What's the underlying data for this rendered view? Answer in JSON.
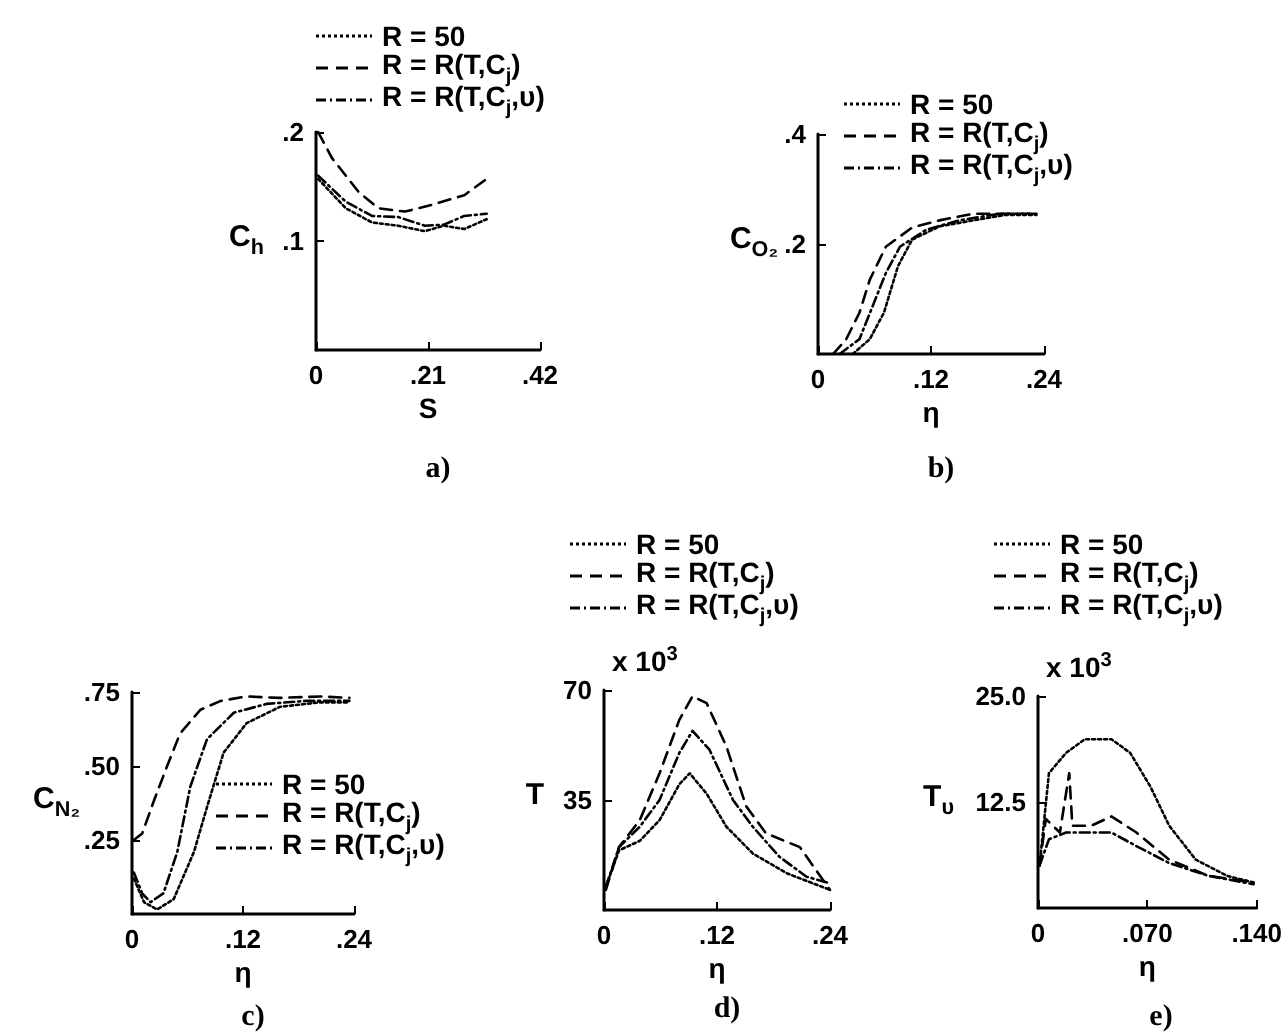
{
  "chart_data": [
    {
      "type": "line",
      "title": "a)",
      "xlabel": "S",
      "ylabel": "C$_{h}$",
      "xlim": [
        0,
        0.42
      ],
      "ylim": [
        0,
        0.2
      ],
      "xticks": [
        {
          "value": 0,
          "label": "0"
        },
        {
          "value": 0.21,
          "label": ".21"
        },
        {
          "value": 0.42,
          "label": ".42"
        }
      ],
      "yticks": [
        {
          "value": 0.1,
          "label": ".1"
        },
        {
          "value": 0.2,
          "label": ".2"
        }
      ],
      "legend": "top",
      "marker": "none",
      "grid": false,
      "series": [
        {
          "name": "R = 50",
          "color": "#000000",
          "line_style": "dotted",
          "x": [
            0.004,
            0.056,
            0.105,
            0.154,
            0.204,
            0.24,
            0.278,
            0.32
          ],
          "values": [
            0.157,
            0.13,
            0.117,
            0.114,
            0.109,
            0.114,
            0.111,
            0.12
          ]
        },
        {
          "name": "R = R(T,C$_{j}$)",
          "color": "#000000",
          "line_style": "dashed",
          "x": [
            0.004,
            0.03,
            0.08,
            0.117,
            0.167,
            0.216,
            0.278,
            0.32
          ],
          "values": [
            0.2,
            0.176,
            0.145,
            0.13,
            0.127,
            0.133,
            0.142,
            0.157
          ]
        },
        {
          "name": "R = R(T,C$_{j}$,υ)",
          "color": "#000000",
          "line_style": "dashdot",
          "x": [
            0.004,
            0.056,
            0.105,
            0.154,
            0.204,
            0.24,
            0.278,
            0.32
          ],
          "values": [
            0.16,
            0.136,
            0.123,
            0.122,
            0.114,
            0.115,
            0.123,
            0.125
          ]
        }
      ]
    },
    {
      "type": "line",
      "title": "b)",
      "xlabel": "η",
      "ylabel": "C$_{O₂}$",
      "xlim": [
        0,
        0.24
      ],
      "ylim": [
        0,
        0.4
      ],
      "xticks": [
        {
          "value": 0,
          "label": "0"
        },
        {
          "value": 0.12,
          "label": ".12"
        },
        {
          "value": 0.24,
          "label": ".24"
        }
      ],
      "yticks": [
        {
          "value": 0.2,
          "label": ".2"
        },
        {
          "value": 0.4,
          "label": ".4"
        }
      ],
      "legend": "top",
      "marker": "none",
      "grid": false,
      "series": [
        {
          "name": "R = 50",
          "color": "#000000",
          "line_style": "dotted",
          "x": [
            0.037,
            0.055,
            0.07,
            0.085,
            0.1,
            0.129,
            0.165,
            0.2,
            0.232
          ],
          "values": [
            0,
            0.027,
            0.075,
            0.16,
            0.208,
            0.232,
            0.243,
            0.253,
            0.253
          ]
        },
        {
          "name": "R = R(T,C$_{j}$)",
          "color": "#000000",
          "line_style": "dashed",
          "x": [
            0.016,
            0.03,
            0.044,
            0.055,
            0.072,
            0.1,
            0.129,
            0.165,
            0.2,
            0.232
          ],
          "values": [
            0,
            0.027,
            0.075,
            0.135,
            0.195,
            0.23,
            0.243,
            0.255,
            0.255,
            0.255
          ]
        },
        {
          "name": "R = R(T,C$_{j}$,υ)",
          "color": "#000000",
          "line_style": "dashdot",
          "x": [
            0.023,
            0.044,
            0.058,
            0.072,
            0.087,
            0.115,
            0.15,
            0.193,
            0.232
          ],
          "values": [
            0,
            0.027,
            0.087,
            0.147,
            0.195,
            0.226,
            0.243,
            0.255,
            0.255
          ]
        }
      ]
    },
    {
      "type": "line",
      "title": "c)",
      "xlabel": "η",
      "ylabel": "C$_{N₂}$",
      "xlim": [
        0,
        0.24
      ],
      "ylim": [
        0,
        0.75
      ],
      "xticks": [
        {
          "value": 0,
          "label": "0"
        },
        {
          "value": 0.12,
          "label": ".12"
        },
        {
          "value": 0.24,
          "label": ".24"
        }
      ],
      "yticks": [
        {
          "value": 0.25,
          "label": ".25"
        },
        {
          "value": 0.5,
          "label": ".50"
        },
        {
          "value": 0.75,
          "label": ".75"
        }
      ],
      "legend": "right",
      "marker": "none",
      "grid": false,
      "series": [
        {
          "name": "R = 50",
          "color": "#000000",
          "line_style": "dotted",
          "x": [
            0.002,
            0.013,
            0.027,
            0.045,
            0.067,
            0.081,
            0.099,
            0.124,
            0.16,
            0.203,
            0.235
          ],
          "values": [
            0.12,
            0.04,
            0.015,
            0.05,
            0.21,
            0.36,
            0.545,
            0.645,
            0.7,
            0.715,
            0.715
          ]
        },
        {
          "name": "R = R(T,C$_{j}$)",
          "color": "#000000",
          "line_style": "dashed",
          "x": [
            0.002,
            0.011,
            0.024,
            0.038,
            0.052,
            0.074,
            0.096,
            0.124,
            0.16,
            0.203,
            0.235
          ],
          "values": [
            0.25,
            0.272,
            0.385,
            0.5,
            0.61,
            0.69,
            0.72,
            0.735,
            0.73,
            0.735,
            0.73
          ]
        },
        {
          "name": "R = R(T,C$_{j}$,υ)",
          "color": "#000000",
          "line_style": "dashdot",
          "x": [
            0.002,
            0.011,
            0.02,
            0.034,
            0.049,
            0.063,
            0.081,
            0.11,
            0.146,
            0.189,
            0.235
          ],
          "values": [
            0.14,
            0.07,
            0.04,
            0.07,
            0.21,
            0.43,
            0.59,
            0.68,
            0.71,
            0.72,
            0.72
          ]
        }
      ]
    },
    {
      "type": "line",
      "title": "d)",
      "xlabel": "η",
      "ylabel": "T",
      "annotations": [
        "x 10$^{3}$"
      ],
      "xlim": [
        0,
        0.24
      ],
      "ylim": [
        0,
        70
      ],
      "xticks": [
        {
          "value": 0,
          "label": "0"
        },
        {
          "value": 0.12,
          "label": ".12"
        },
        {
          "value": 0.24,
          "label": ".24"
        }
      ],
      "yticks": [
        35,
        70
      ],
      "legend": "top",
      "marker": "none",
      "grid": false,
      "series": [
        {
          "name": "R = 50",
          "color": "#000000",
          "line_style": "dotted",
          "x": [
            0.002,
            0.016,
            0.038,
            0.059,
            0.08,
            0.091,
            0.109,
            0.13,
            0.158,
            0.194,
            0.24
          ],
          "values": [
            7.4,
            19,
            22,
            28.6,
            40,
            43.5,
            37,
            26.5,
            18,
            11.7,
            6.4
          ]
        },
        {
          "name": "R = R(T,C$_{j}$)",
          "color": "#000000",
          "line_style": "dashed",
          "x": [
            0.002,
            0.016,
            0.038,
            0.059,
            0.08,
            0.094,
            0.109,
            0.13,
            0.151,
            0.172,
            0.208,
            0.24
          ],
          "values": [
            6.4,
            20,
            28.6,
            43.5,
            60.5,
            68,
            65.8,
            52,
            33,
            24.4,
            20,
            6.4
          ]
        },
        {
          "name": "R = R(T,C$_{j}$,υ)",
          "color": "#000000",
          "line_style": "dashdot",
          "x": [
            0.002,
            0.016,
            0.038,
            0.059,
            0.08,
            0.094,
            0.112,
            0.137,
            0.158,
            0.186,
            0.215,
            0.24
          ],
          "values": [
            7.4,
            20,
            26.5,
            35,
            50,
            57,
            51,
            35,
            26.5,
            17,
            10.6,
            8.5
          ]
        }
      ]
    },
    {
      "type": "line",
      "title": "e)",
      "xlabel": "η",
      "ylabel": "T$_{υ}$",
      "annotations": [
        "x 10$^{3}$"
      ],
      "xlim": [
        0,
        0.14
      ],
      "ylim": [
        0,
        25
      ],
      "xticks": [
        {
          "value": 0,
          "label": "0"
        },
        {
          "value": 0.07,
          "label": ".070"
        },
        {
          "value": 0.14,
          "label": ".140"
        }
      ],
      "yticks": [
        {
          "value": 12.5,
          "label": "12.5"
        },
        {
          "value": 25,
          "label": "25.0"
        }
      ],
      "legend": "top",
      "marker": "none",
      "grid": false,
      "series": [
        {
          "name": "R = 50",
          "color": "#000000",
          "line_style": "dotted",
          "x": [
            0.001,
            0.007,
            0.018,
            0.03,
            0.047,
            0.059,
            0.072,
            0.084,
            0.101,
            0.121,
            0.138
          ],
          "values": [
            5,
            15.9,
            18.3,
            19.9,
            19.9,
            18.3,
            14.3,
            9.7,
            5.7,
            3.8,
            3
          ]
        },
        {
          "name": "R = R(T,C$_{j}$)",
          "color": "#000000",
          "line_style": "dashed",
          "x": [
            0.001,
            0.005,
            0.014,
            0.02,
            0.022,
            0.034,
            0.047,
            0.063,
            0.084,
            0.109,
            0.138
          ],
          "values": [
            5,
            10.5,
            8.9,
            15.9,
            9.7,
            9.7,
            10.8,
            8.9,
            5.7,
            3.8,
            3
          ]
        },
        {
          "name": "R = R(T,C$_{j}$,υ)",
          "color": "#000000",
          "line_style": "dashdot",
          "x": [
            0.001,
            0.007,
            0.018,
            0.034,
            0.047,
            0.063,
            0.084,
            0.109,
            0.138
          ],
          "values": [
            5,
            8.1,
            8.9,
            8.9,
            8.9,
            7.3,
            5.3,
            3.8,
            2.8
          ]
        }
      ]
    }
  ]
}
